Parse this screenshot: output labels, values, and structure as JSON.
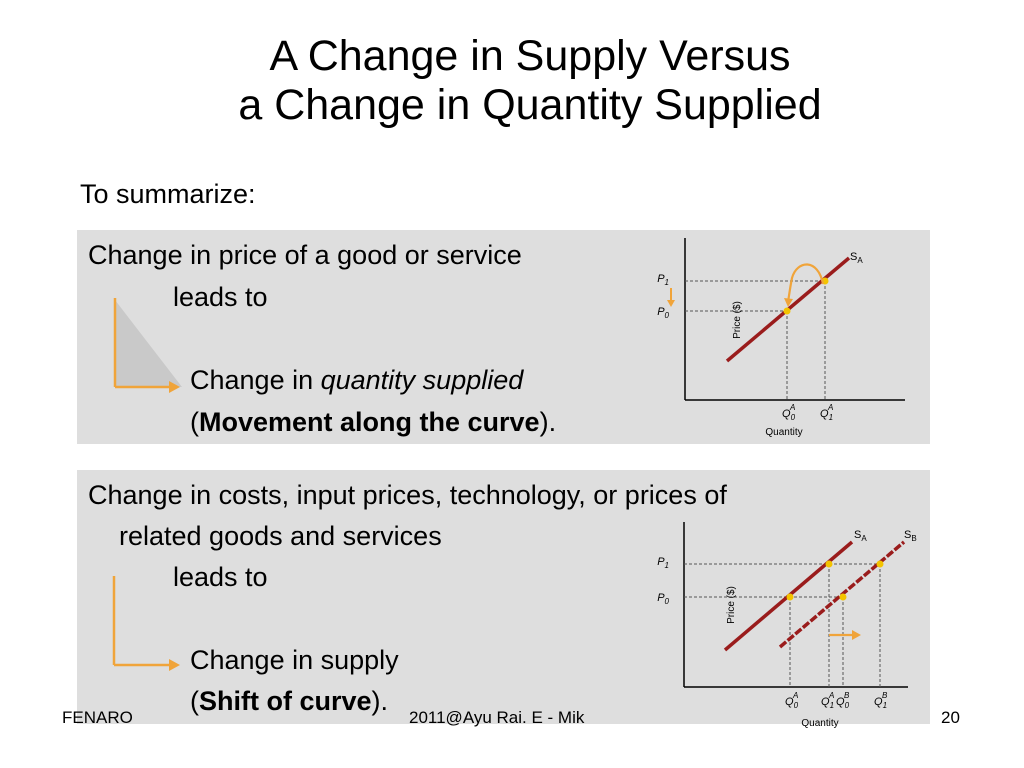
{
  "slide": {
    "title_line1": "A Change in Supply Versus",
    "title_line2": "a Change in Quantity Supplied",
    "intro": "To summarize:"
  },
  "box1": {
    "line1": "Change in price of a good or service",
    "line2": "leads to",
    "line3_prefix": "Change in ",
    "line3_italic": "quantity supplied",
    "line4_open": "(",
    "line4_bold": "Movement along the curve",
    "line4_close": ")."
  },
  "box2": {
    "line1": "Change in costs, input prices, technology, or prices of",
    "line2": "related goods and services",
    "line3": "leads to",
    "line4": "Change in supply",
    "line5_open": "(",
    "line5_bold": "Shift of curve",
    "line5_close": ")."
  },
  "graph1": {
    "ylabel": "Price ($)",
    "xlabel": "Quantity",
    "curve": "SA",
    "p1": "P1",
    "p0": "P0",
    "q0": "Q0A",
    "q1": "Q1A"
  },
  "graph2": {
    "ylabel": "Price ($)",
    "xlabel": "Quantity",
    "curve_a": "SA",
    "curve_b": "SB",
    "p1": "P1",
    "p0": "P0",
    "q0a": "Q0A",
    "q1a": "Q1A",
    "q0b": "Q0B",
    "q1b": "Q1B"
  },
  "footer": {
    "left": "FENARO",
    "center": "2011@Ayu Rai. E - Mik",
    "page": "20"
  },
  "colors": {
    "curve": "#9a1c1c",
    "arrow": "#f0a43a",
    "dot": "#f3c300",
    "panel": "#dedede"
  }
}
